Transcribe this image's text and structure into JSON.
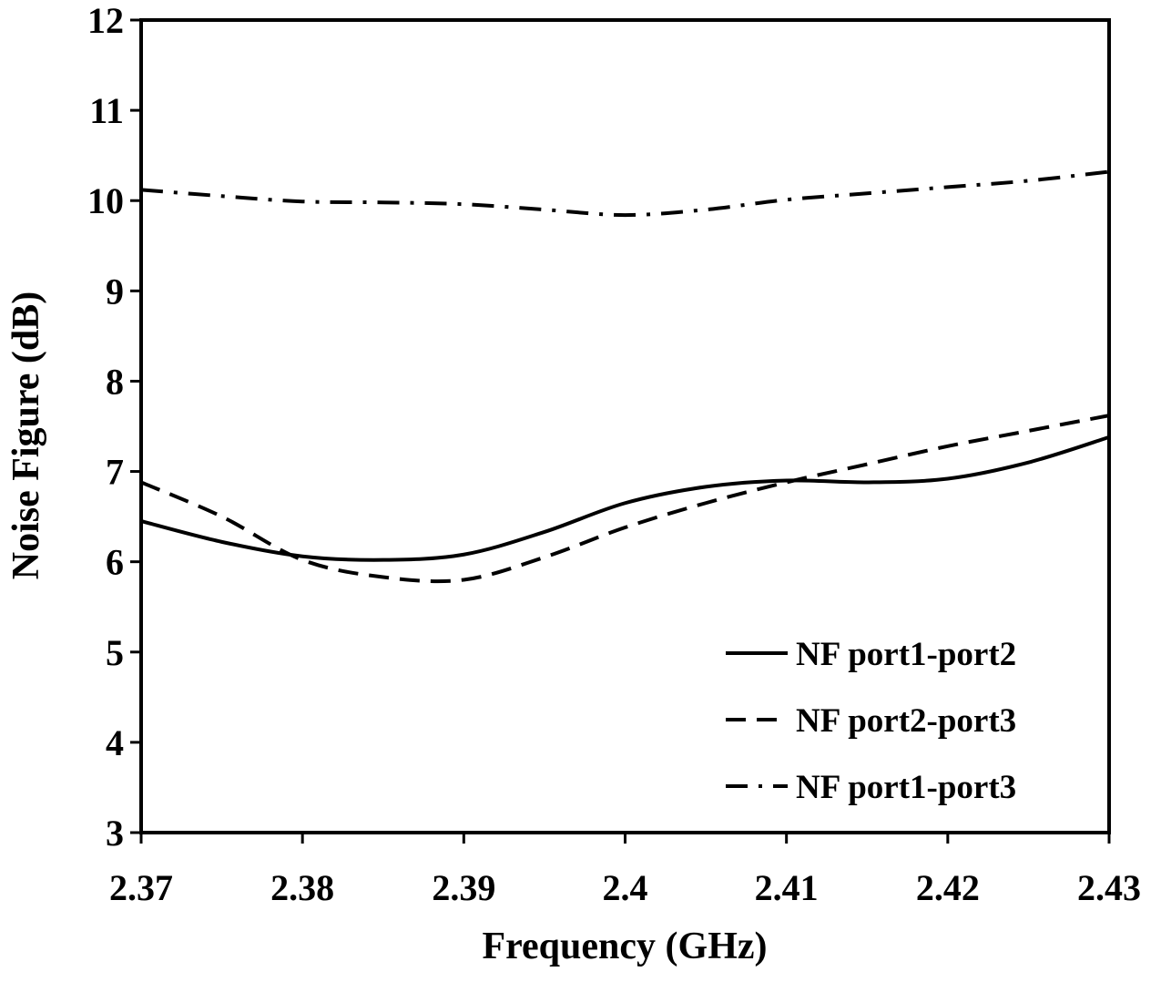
{
  "chart_data": {
    "type": "line",
    "title": "",
    "xlabel": "Frequency (GHz)",
    "ylabel": "Noise Figure (dB)",
    "xlim": [
      2.37,
      2.43
    ],
    "ylim": [
      3,
      12
    ],
    "x_ticks": [
      "2.37",
      "2.38",
      "2.39",
      "2.4",
      "2.41",
      "2.42",
      "2.43"
    ],
    "y_ticks": [
      "3",
      "4",
      "5",
      "6",
      "7",
      "8",
      "9",
      "10",
      "11",
      "12"
    ],
    "grid": false,
    "legend_position": "bottom-right",
    "series": [
      {
        "name": "NF port1-port2",
        "style": "solid",
        "x": [
          2.37,
          2.375,
          2.38,
          2.385,
          2.39,
          2.395,
          2.4,
          2.405,
          2.41,
          2.415,
          2.42,
          2.425,
          2.43
        ],
        "y": [
          6.45,
          6.22,
          6.06,
          6.02,
          6.08,
          6.33,
          6.65,
          6.83,
          6.9,
          6.88,
          6.92,
          7.1,
          7.38
        ]
      },
      {
        "name": "NF port2-port3",
        "style": "dashed",
        "x": [
          2.37,
          2.375,
          2.38,
          2.385,
          2.39,
          2.395,
          2.4,
          2.405,
          2.41,
          2.415,
          2.42,
          2.425,
          2.43
        ],
        "y": [
          6.88,
          6.5,
          6.02,
          5.83,
          5.8,
          6.05,
          6.38,
          6.65,
          6.88,
          7.08,
          7.28,
          7.45,
          7.62
        ]
      },
      {
        "name": "NF port1-port3",
        "style": "dash-dot",
        "x": [
          2.37,
          2.375,
          2.38,
          2.385,
          2.39,
          2.395,
          2.4,
          2.405,
          2.41,
          2.415,
          2.42,
          2.425,
          2.43
        ],
        "y": [
          10.12,
          10.05,
          9.99,
          9.98,
          9.96,
          9.9,
          9.84,
          9.9,
          10.01,
          10.08,
          10.15,
          10.22,
          10.32
        ]
      }
    ]
  }
}
